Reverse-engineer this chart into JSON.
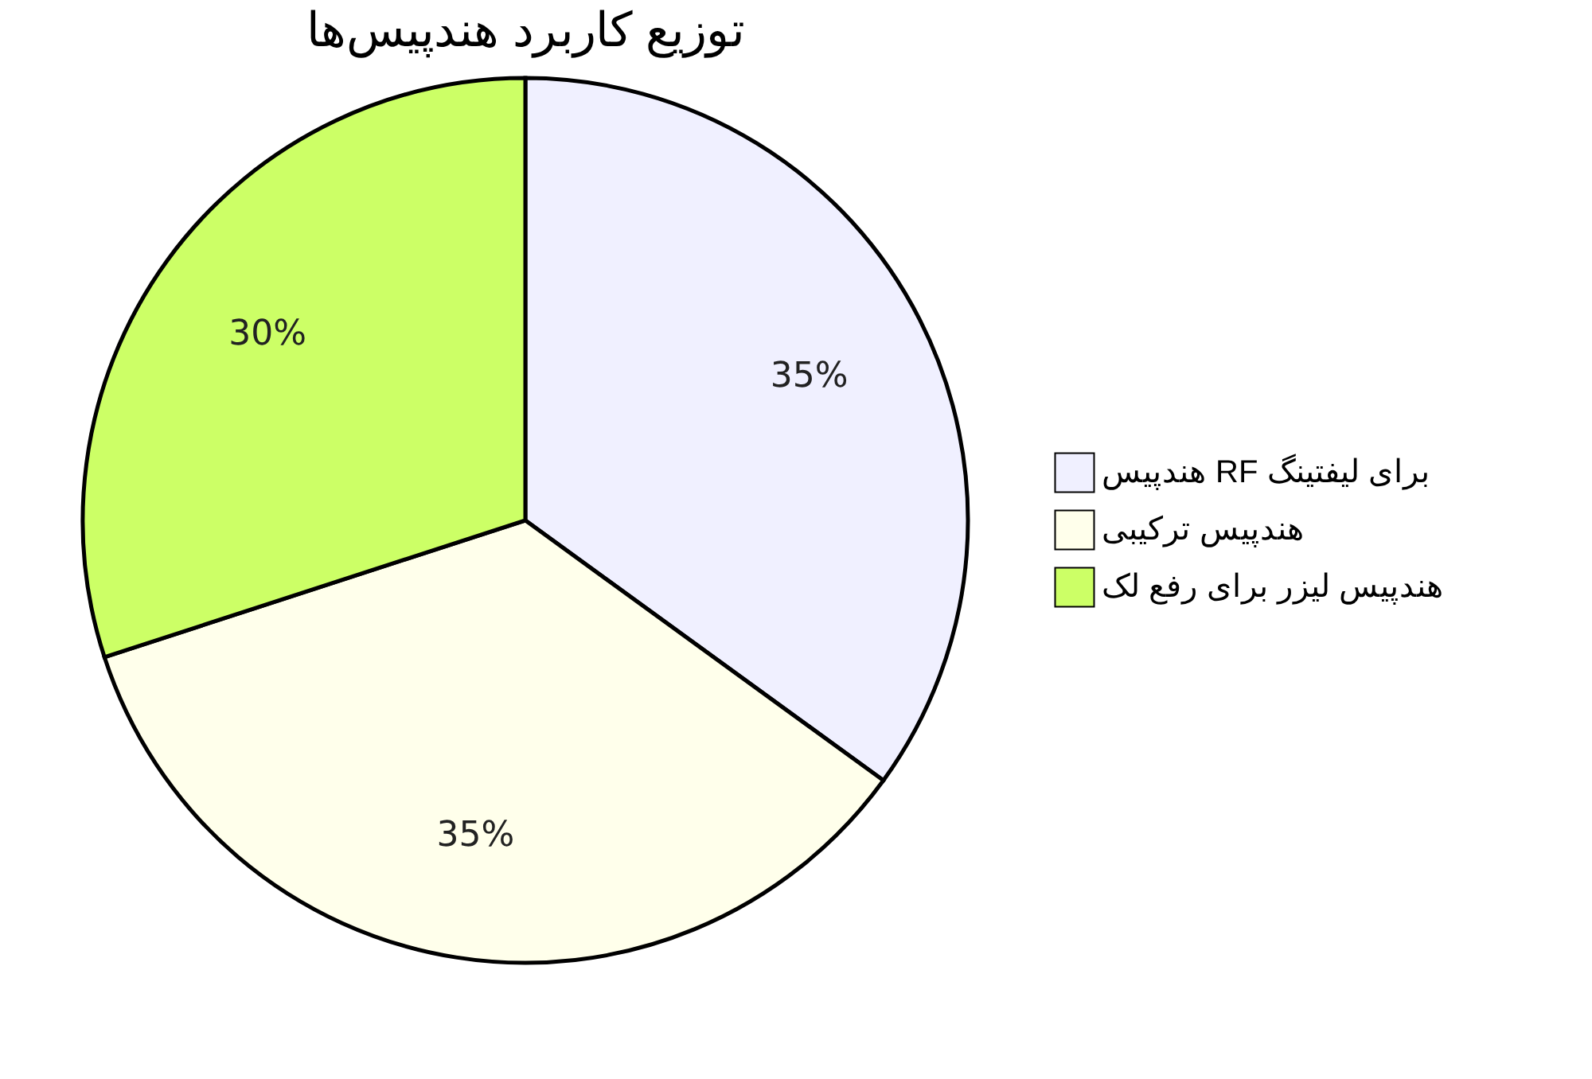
{
  "chart_data": {
    "type": "pie",
    "title": "توزیع کاربرد هندپیس‌ها",
    "categories": [
      "هندپیس RF برای لیفتینگ",
      "هندپیس ترکیبی",
      "هندپیس لیزر برای رفع لک"
    ],
    "values": [
      35,
      35,
      30
    ],
    "colors": [
      "#f0f0ff",
      "#ffffeb",
      "#ccff66"
    ],
    "value_labels": [
      "35%",
      "35%",
      "30%"
    ],
    "legend": "right"
  }
}
